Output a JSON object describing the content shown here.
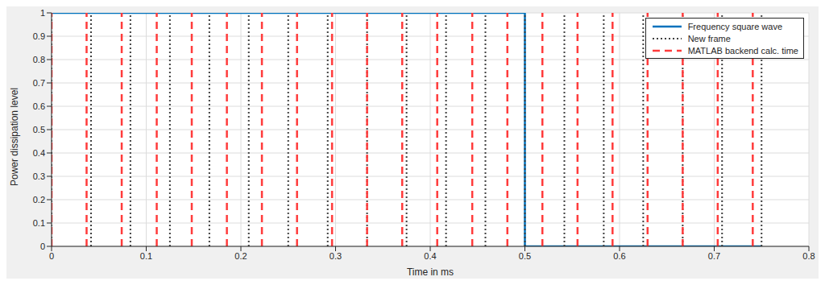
{
  "chart_data": {
    "type": "line",
    "x_label": "Time in ms",
    "y_label": "Power dissipation level",
    "xlim": [
      0,
      0.8
    ],
    "xticks": [
      0,
      0.1,
      0.2,
      0.3,
      0.4,
      0.5,
      0.6,
      0.7,
      0.8
    ],
    "ylim": [
      0,
      1
    ],
    "yticks": [
      0,
      0.1,
      0.2,
      0.3,
      0.4,
      0.5,
      0.6,
      0.7,
      0.8,
      0.9,
      1
    ],
    "grid": true,
    "legend": "upper right",
    "series": [
      {
        "name": "Frequency square wave",
        "type": "line",
        "color": "#0072bd",
        "line_style": "solid",
        "x": [
          0,
          0.5,
          0.5,
          0.75
        ],
        "values": [
          1,
          1,
          0,
          0
        ]
      },
      {
        "name": "New frame",
        "type": "vline",
        "color": "#404040",
        "line_style": "dotted",
        "x": [
          0,
          0.0417,
          0.0833,
          0.125,
          0.1667,
          0.2083,
          0.25,
          0.2917,
          0.3333,
          0.375,
          0.4167,
          0.4583,
          0.5,
          0.5417,
          0.5833,
          0.625,
          0.6667,
          0.7083,
          0.75
        ]
      },
      {
        "name": "MATLAB backend calc. time",
        "type": "vline",
        "color": "#ff3b3b",
        "line_style": "dashed",
        "x": [
          0,
          0.037,
          0.0741,
          0.1111,
          0.1481,
          0.1852,
          0.2222,
          0.2593,
          0.2963,
          0.3333,
          0.3704,
          0.4074,
          0.4444,
          0.4815,
          0.5185,
          0.5556,
          0.5926,
          0.6296,
          0.6667,
          0.7037,
          0.7407
        ]
      }
    ]
  }
}
